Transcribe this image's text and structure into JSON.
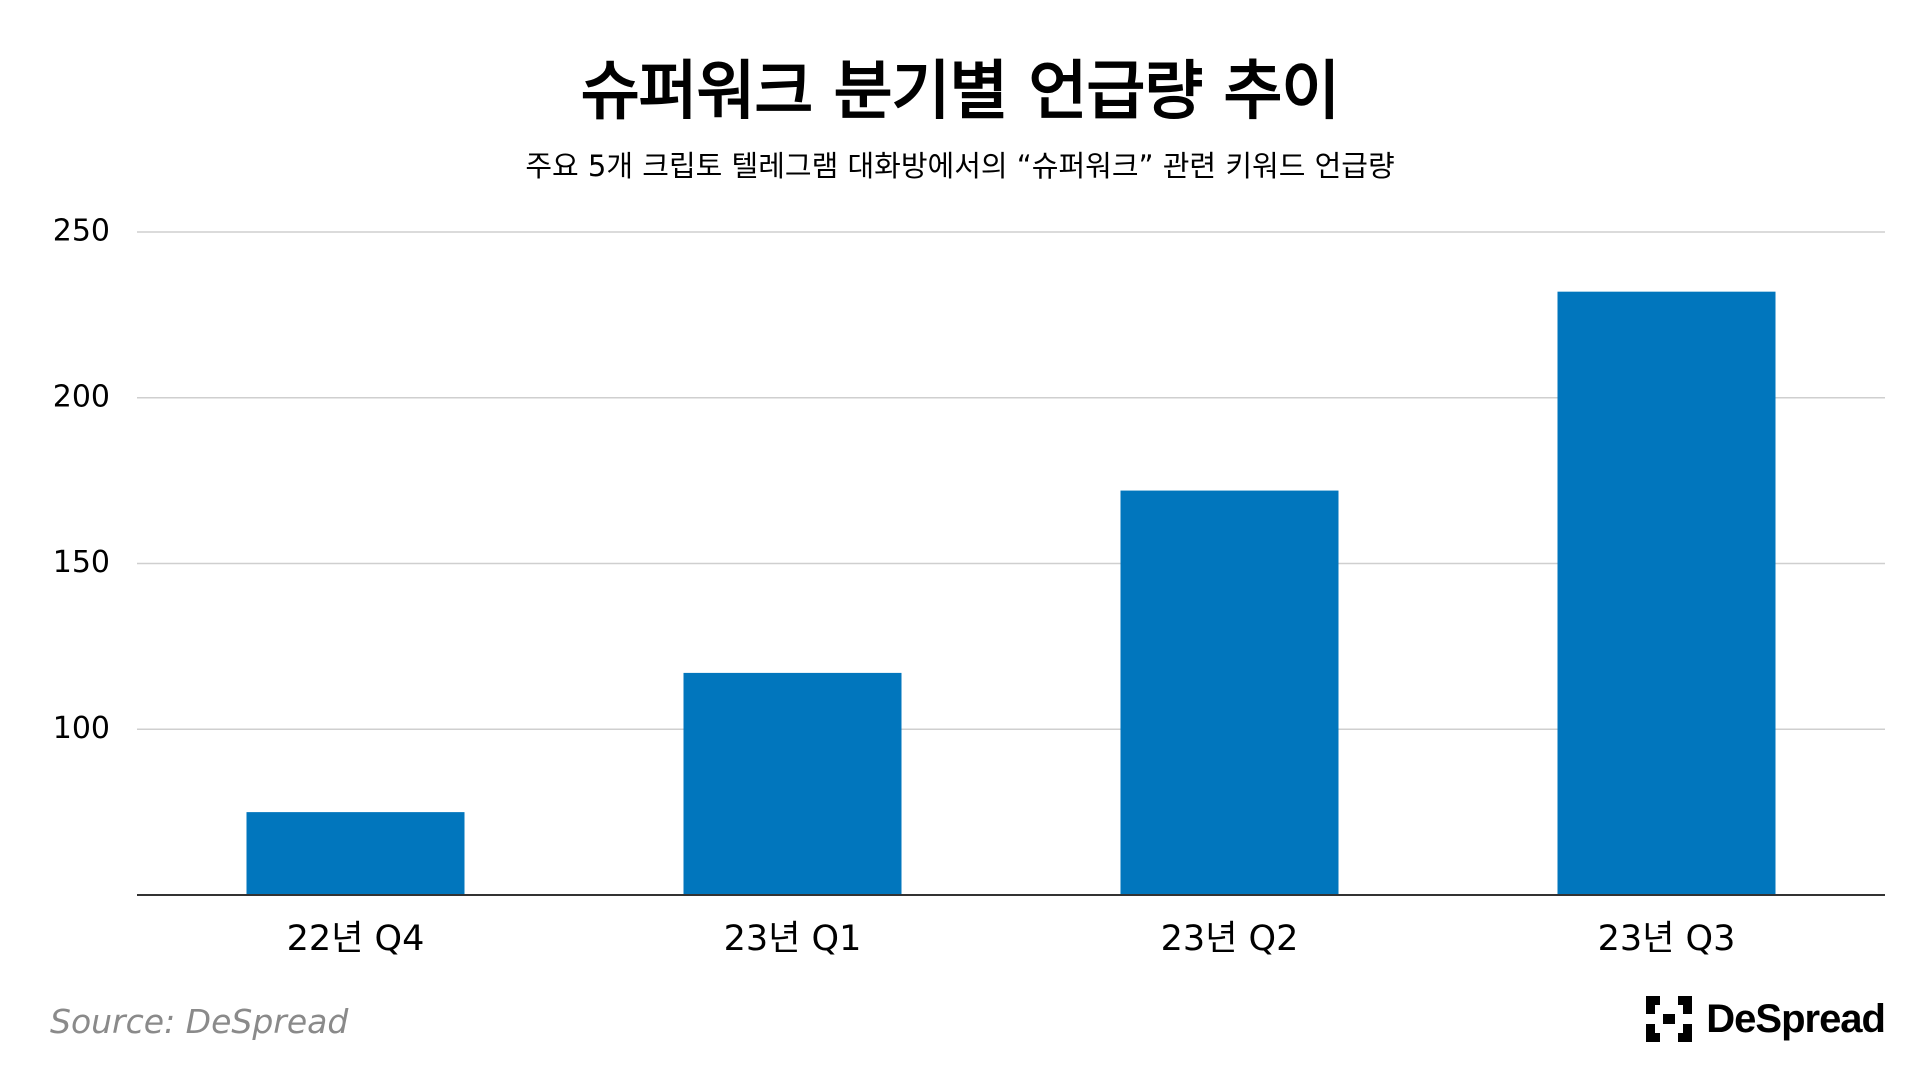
{
  "chart_data": {
    "type": "bar",
    "title": "슈퍼워크 분기별 언급량 추이",
    "subtitle": "주요 5개 크립토 텔레그램 대화방에서의 “슈퍼워크” 관련 키워드 언급량",
    "categories": [
      "22년 Q4",
      "23년 Q1",
      "23년 Q2",
      "23년 Q3"
    ],
    "values": [
      75,
      117,
      172,
      232
    ],
    "ylim": [
      50,
      250
    ],
    "yticks": [
      100,
      150,
      200,
      250
    ],
    "grid": true,
    "bar_color": "#0176bd",
    "grid_color": "#cfcfcf",
    "axis_color": "#333333"
  },
  "footer": {
    "source": "Source: DeSpread",
    "logo_text": "DeSpread",
    "logo_icon": "despread-bracket-icon"
  }
}
